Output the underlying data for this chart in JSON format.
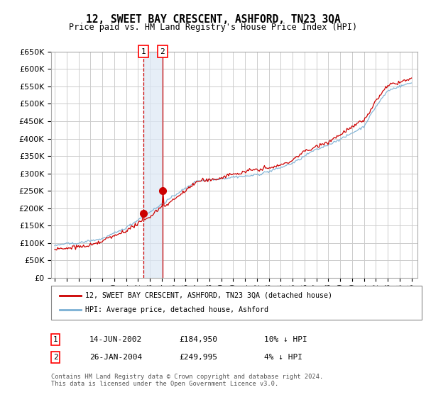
{
  "title": "12, SWEET BAY CRESCENT, ASHFORD, TN23 3QA",
  "subtitle": "Price paid vs. HM Land Registry's House Price Index (HPI)",
  "ylim": [
    0,
    650000
  ],
  "yticks": [
    0,
    50000,
    100000,
    150000,
    200000,
    250000,
    300000,
    350000,
    400000,
    450000,
    500000,
    550000,
    600000,
    650000
  ],
  "background_color": "#ffffff",
  "grid_color": "#cccccc",
  "line1_color": "#cc0000",
  "line2_color": "#7ab0d4",
  "transaction1": {
    "date": "14-JUN-2002",
    "price": 184950,
    "label": "1",
    "year": 2002.45
  },
  "transaction2": {
    "date": "26-JAN-2004",
    "price": 249995,
    "label": "2",
    "year": 2004.07
  },
  "legend1": "12, SWEET BAY CRESCENT, ASHFORD, TN23 3QA (detached house)",
  "legend2": "HPI: Average price, detached house, Ashford",
  "footer": "Contains HM Land Registry data © Crown copyright and database right 2024.\nThis data is licensed under the Open Government Licence v3.0.",
  "table": [
    {
      "num": "1",
      "date": "14-JUN-2002",
      "price": "£184,950",
      "hpi": "10% ↓ HPI"
    },
    {
      "num": "2",
      "date": "26-JAN-2004",
      "price": "£249,995",
      "hpi": "4% ↓ HPI"
    }
  ]
}
